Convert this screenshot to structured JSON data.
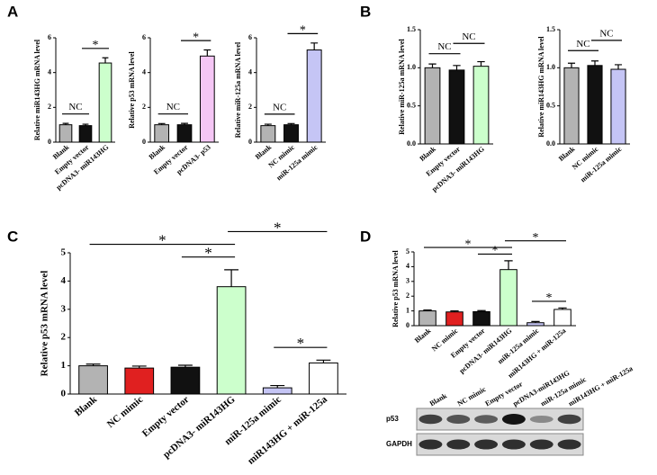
{
  "panels": [
    "A",
    "B",
    "C",
    "D"
  ],
  "chart_data": [
    {
      "type": "bar",
      "panel": "A",
      "ylabel": "Relative miR143HG  mRNA level",
      "categories": [
        "Blank",
        "Empty vector",
        "pcDNA3- miR143HG"
      ],
      "values": [
        1,
        0.95,
        4.55
      ],
      "errors": [
        0.08,
        0.08,
        0.3
      ],
      "colors": [
        "#b3b3b3",
        "#111111",
        "#ccffcc"
      ],
      "ylim": [
        0,
        6
      ],
      "yticks": [
        0,
        2,
        4,
        6
      ],
      "annotations": [
        {
          "text": "NC",
          "bars": [
            0,
            1
          ]
        },
        {
          "text": "*",
          "bars": [
            1,
            2
          ]
        }
      ]
    },
    {
      "type": "bar",
      "ylabel": "Relative p53 mRNA level",
      "categories": [
        "Blank",
        "Empty vector",
        "pcDNA3- p53"
      ],
      "values": [
        1,
        1,
        4.95
      ],
      "errors": [
        0.07,
        0.08,
        0.35
      ],
      "colors": [
        "#b3b3b3",
        "#111111",
        "#f5c6f5"
      ],
      "ylim": [
        0,
        6
      ],
      "yticks": [
        0,
        2,
        4,
        6
      ],
      "annotations": [
        {
          "text": "NC",
          "bars": [
            0,
            1
          ]
        },
        {
          "text": "*",
          "bars": [
            1,
            2
          ]
        }
      ]
    },
    {
      "type": "bar",
      "ylabel": "Relative miR-125a  mRNA level",
      "categories": [
        "Blank",
        "NC mimic",
        "miR-125a mimic"
      ],
      "values": [
        0.95,
        1,
        5.3
      ],
      "errors": [
        0.08,
        0.07,
        0.4
      ],
      "colors": [
        "#b3b3b3",
        "#111111",
        "#c5c5f5"
      ],
      "ylim": [
        0,
        6
      ],
      "yticks": [
        0,
        2,
        4,
        6
      ],
      "annotations": [
        {
          "text": "NC",
          "bars": [
            0,
            1
          ]
        },
        {
          "text": "*",
          "bars": [
            1,
            2
          ]
        }
      ]
    },
    {
      "type": "bar",
      "panel": "B",
      "ylabel": "Relative miR-125a  mRNA level",
      "categories": [
        "Blank",
        "Empty vector",
        "pcDNA3- miR143HG"
      ],
      "values": [
        1,
        0.97,
        1.02
      ],
      "errors": [
        0.05,
        0.06,
        0.06
      ],
      "colors": [
        "#b3b3b3",
        "#111111",
        "#ccffcc"
      ],
      "ylim": [
        0,
        1.5
      ],
      "yticks": [
        {
          "value": 0,
          "label": "0.0"
        },
        0.5,
        {
          "value": 1,
          "label": "1.0"
        },
        1.5
      ],
      "annotations": [
        {
          "text": "NC",
          "bars": [
            0,
            1
          ]
        },
        {
          "text": "NC",
          "bars": [
            1,
            2
          ]
        }
      ]
    },
    {
      "type": "bar",
      "ylabel": "Relative miR143HG  mRNA level",
      "categories": [
        "Blank",
        "NC mimic",
        "miR-125a mimic"
      ],
      "values": [
        1,
        1.03,
        0.98
      ],
      "errors": [
        0.06,
        0.06,
        0.06
      ],
      "colors": [
        "#b3b3b3",
        "#111111",
        "#c5c5f5"
      ],
      "ylim": [
        0,
        1.5
      ],
      "yticks": [
        {
          "value": 0,
          "label": "0.0"
        },
        0.5,
        {
          "value": 1,
          "label": "1.0"
        },
        1.5
      ],
      "annotations": [
        {
          "text": "NC",
          "bars": [
            0,
            1
          ]
        },
        {
          "text": "NC",
          "bars": [
            1,
            2
          ]
        }
      ]
    },
    {
      "type": "bar",
      "panel": "C",
      "ylabel": "Relative p53 mRNA level",
      "categories": [
        "Blank",
        "NC mimic",
        "Empty vector",
        "pcDNA3- miR143HG",
        "miR-125a mimic",
        "miR143HG + miR-125a"
      ],
      "values": [
        1,
        0.92,
        0.95,
        3.8,
        0.22,
        1.1
      ],
      "errors": [
        0.06,
        0.07,
        0.07,
        0.6,
        0.08,
        0.1
      ],
      "colors": [
        "#b3b3b3",
        "#e02020",
        "#111111",
        "#ccffcc",
        "#c5c5f5",
        "#ffffff"
      ],
      "ylim": [
        0,
        5
      ],
      "yticks": [
        0,
        1,
        2,
        3,
        4,
        5
      ],
      "annotations": [
        {
          "text": "*",
          "bars": [
            4,
            5
          ]
        },
        {
          "text": "*",
          "bars": [
            2,
            3
          ]
        },
        {
          "text": "*",
          "bars": [
            0,
            3
          ]
        },
        {
          "text": "*",
          "bars": [
            3,
            5
          ]
        }
      ]
    },
    {
      "type": "bar",
      "panel": "D",
      "ylabel": "Relative p53 mRNA level",
      "categories": [
        "Blank",
        "NC mimic",
        "Empty vector",
        "pcDNA3- miR143HG",
        "miR-125a mimic",
        "miR143HG + miR-125a"
      ],
      "values": [
        1,
        0.93,
        0.95,
        3.8,
        0.2,
        1.1
      ],
      "errors": [
        0.06,
        0.07,
        0.07,
        0.6,
        0.08,
        0.1
      ],
      "colors": [
        "#b3b3b3",
        "#e02020",
        "#111111",
        "#ccffcc",
        "#c5c5f5",
        "#ffffff"
      ],
      "ylim": [
        0,
        5
      ],
      "yticks": [
        0,
        1,
        2,
        3,
        4,
        5
      ],
      "annotations": [
        {
          "text": "*",
          "bars": [
            4,
            5
          ]
        },
        {
          "text": "*",
          "bars": [
            2,
            3
          ]
        },
        {
          "text": "*",
          "bars": [
            0,
            3
          ]
        },
        {
          "text": "*",
          "bars": [
            3,
            5
          ]
        }
      ]
    }
  ],
  "blot": {
    "lanes": [
      "Blank",
      "NC mimic",
      "Empty vector",
      "pcDNA3-miR143HG",
      "miR-125a mimic",
      "miR143HG + miR-125a"
    ],
    "rows": [
      "p53",
      "GAPDH"
    ]
  }
}
